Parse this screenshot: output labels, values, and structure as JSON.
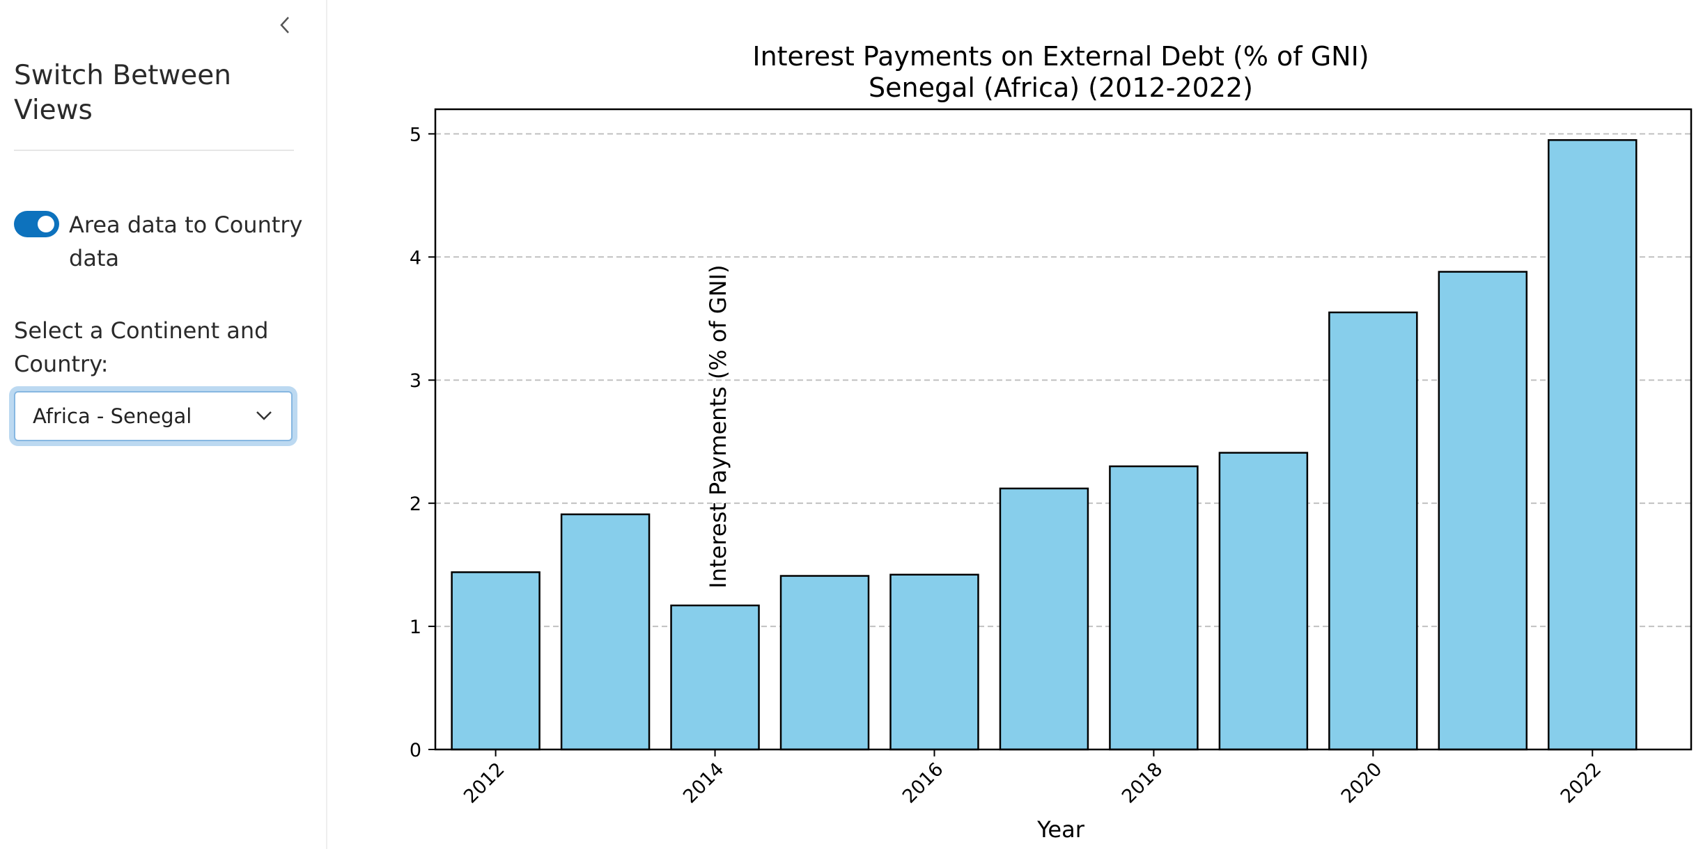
{
  "sidebar": {
    "title": "Switch Between Views",
    "toggle": {
      "label": "Area data to Country data",
      "checked": true
    },
    "select": {
      "label": "Select a Continent and Country:",
      "value": "Africa - Senegal"
    },
    "collapse_icon": "chevron-left-icon",
    "dropdown_icon": "chevron-down-icon"
  },
  "colors": {
    "accent": "#0d72bd",
    "bar_fill": "#87ceeb",
    "bar_edge": "#000000",
    "grid": "#c0c0c0"
  },
  "chart_data": {
    "type": "bar",
    "title": "Interest Payments on External Debt (% of GNI)",
    "subtitle": "Senegal (Africa) (2012-2022)",
    "xlabel": "Year",
    "ylabel": "Interest Payments (% of GNI)",
    "x": [
      2012,
      2013,
      2014,
      2015,
      2016,
      2017,
      2018,
      2019,
      2020,
      2021,
      2022
    ],
    "values": [
      1.44,
      1.91,
      1.17,
      1.41,
      1.42,
      2.12,
      2.3,
      2.41,
      3.55,
      3.88,
      4.95
    ],
    "x_ticks": [
      "2012",
      "2014",
      "2016",
      "2018",
      "2020",
      "2022"
    ],
    "y_ticks": [
      "0",
      "1",
      "2",
      "3",
      "4",
      "5"
    ],
    "ylim": [
      0,
      5.2
    ],
    "grid": "y-dashed",
    "legend": "none"
  }
}
